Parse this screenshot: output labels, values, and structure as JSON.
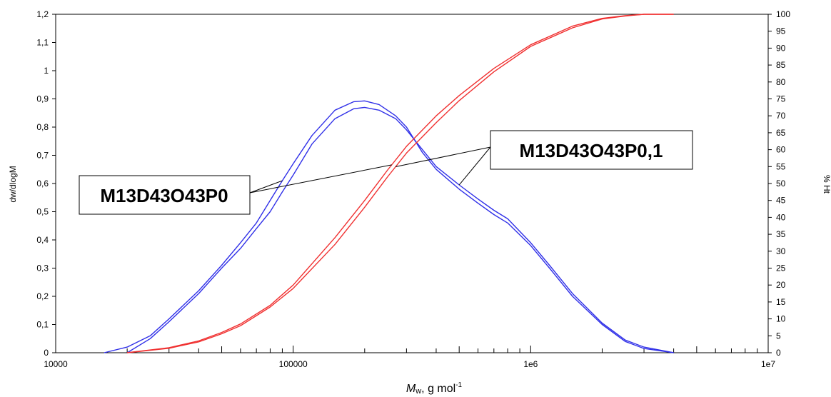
{
  "chart_data": {
    "type": "line",
    "x_scale": "log",
    "xlim": [
      10000,
      10000000
    ],
    "x_tick_labels": [
      "10000",
      "100000",
      "1e6",
      "1e7"
    ],
    "xlabel": {
      "italic": "M",
      "sub": "w",
      "rest": ", g mol",
      "sup": "-1"
    },
    "ylabel_left": "dw/dlogM",
    "ylim_left": [
      0,
      1.2
    ],
    "y_left_ticks": [
      0,
      0.1,
      0.2,
      0.3,
      0.4,
      0.5,
      0.6,
      0.7,
      0.8,
      0.9,
      1.0,
      1.1,
      1.2
    ],
    "y_left_tick_labels": [
      "0",
      "0,1",
      "0,2",
      "0,3",
      "0,4",
      "0,5",
      "0,6",
      "0,7",
      "0,8",
      "0,9",
      "1",
      "1,1",
      "1,2"
    ],
    "ylabel_right": "% Ht",
    "ylim_right": [
      0,
      100
    ],
    "y_right_ticks": [
      0,
      5,
      10,
      15,
      20,
      25,
      30,
      35,
      40,
      45,
      50,
      55,
      60,
      65,
      70,
      75,
      80,
      85,
      90,
      95,
      100
    ],
    "y_right_tick_labels": [
      "0",
      "5",
      "10",
      "15",
      "20",
      "25",
      "30",
      "35",
      "40",
      "45",
      "50",
      "55",
      "60",
      "65",
      "70",
      "75",
      "80",
      "85",
      "90",
      "95",
      "100"
    ],
    "grid": false,
    "colors": {
      "differential": "#3030e8",
      "cumulative": "#f03030"
    },
    "series": [
      {
        "axis": "left",
        "kind": "differential",
        "sample": "M13D43O43P0",
        "x": [
          16000,
          20000,
          25000,
          30000,
          40000,
          50000,
          60000,
          70000,
          80000,
          90000,
          100000,
          120000,
          150000,
          180000,
          200000,
          230000,
          270000,
          300000,
          350000,
          400000,
          500000,
          600000,
          700000,
          800000,
          1000000,
          1200000,
          1500000,
          2000000,
          2500000,
          3000000,
          4000000
        ],
        "y": [
          0,
          0.02,
          0.06,
          0.12,
          0.22,
          0.31,
          0.39,
          0.46,
          0.54,
          0.61,
          0.67,
          0.77,
          0.86,
          0.89,
          0.893,
          0.88,
          0.84,
          0.8,
          0.71,
          0.65,
          0.58,
          0.53,
          0.49,
          0.46,
          0.38,
          0.3,
          0.2,
          0.1,
          0.04,
          0.015,
          0
        ]
      },
      {
        "axis": "left",
        "kind": "differential",
        "sample": "M13D43O43P0,1",
        "x": [
          20000,
          25000,
          30000,
          40000,
          50000,
          60000,
          70000,
          80000,
          90000,
          100000,
          120000,
          150000,
          180000,
          200000,
          230000,
          270000,
          300000,
          350000,
          400000,
          500000,
          600000,
          700000,
          800000,
          1000000,
          1200000,
          1500000,
          2000000,
          2500000,
          3000000,
          4000000
        ],
        "y": [
          0,
          0.05,
          0.11,
          0.21,
          0.3,
          0.37,
          0.44,
          0.5,
          0.57,
          0.63,
          0.74,
          0.83,
          0.865,
          0.87,
          0.86,
          0.83,
          0.79,
          0.72,
          0.66,
          0.595,
          0.545,
          0.505,
          0.475,
          0.39,
          0.31,
          0.21,
          0.105,
          0.045,
          0.02,
          0
        ]
      },
      {
        "axis": "right",
        "kind": "cumulative",
        "sample": "M13D43O43P0",
        "x": [
          20000,
          30000,
          40000,
          50000,
          60000,
          80000,
          100000,
          150000,
          200000,
          250000,
          300000,
          400000,
          500000,
          700000,
          1000000,
          1500000,
          2000000,
          2500000,
          3000000,
          4000000
        ],
        "y": [
          0,
          1.5,
          3.5,
          6,
          8.5,
          14,
          20,
          34,
          45,
          54,
          61,
          70,
          76,
          84,
          91,
          96.5,
          98.8,
          99.6,
          100,
          100
        ]
      },
      {
        "axis": "right",
        "kind": "cumulative",
        "sample": "M13D43O43P0,1",
        "x": [
          20000,
          30000,
          40000,
          50000,
          60000,
          80000,
          100000,
          150000,
          200000,
          250000,
          300000,
          400000,
          500000,
          700000,
          1000000,
          1500000,
          2000000,
          2500000,
          3000000,
          4000000
        ],
        "y": [
          0,
          1.3,
          3.2,
          5.6,
          8,
          13.5,
          19,
          32,
          43,
          52,
          59,
          68,
          74.5,
          83,
          90.5,
          96,
          98.6,
          99.5,
          100,
          100
        ]
      }
    ],
    "annotations": [
      {
        "text": "M13D43O43P0"
      },
      {
        "text": "M13D43O43P0,1"
      }
    ]
  }
}
